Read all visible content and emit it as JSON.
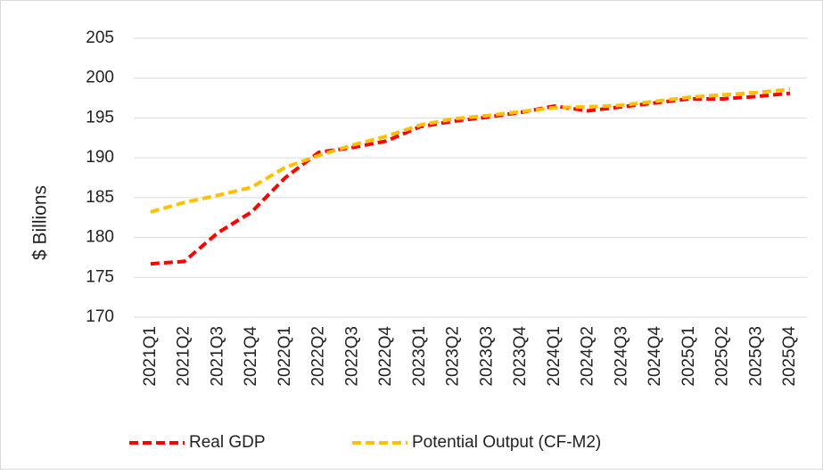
{
  "chart_data": {
    "type": "line",
    "y_label": "$ Billions",
    "categories": [
      "2021Q1",
      "2021Q2",
      "2021Q3",
      "2021Q4",
      "2022Q1",
      "2022Q2",
      "2022Q3",
      "2022Q4",
      "2023Q1",
      "2023Q2",
      "2023Q3",
      "2023Q4",
      "2024Q1",
      "2024Q2",
      "2024Q3",
      "2024Q4",
      "2025Q1",
      "2025Q2",
      "2025Q3",
      "2025Q4"
    ],
    "series": [
      {
        "name": "Real GDP",
        "color": "#ff0000",
        "values": [
          176.7,
          177.0,
          180.6,
          183.2,
          187.5,
          190.7,
          191.3,
          192.1,
          193.9,
          194.6,
          195.1,
          195.7,
          196.5,
          195.9,
          196.4,
          196.9,
          197.4,
          197.4,
          197.7,
          198.1
        ]
      },
      {
        "name": "Potential Output (CF-M2)",
        "color": "#ffc000",
        "values": [
          183.2,
          184.4,
          185.3,
          186.3,
          188.8,
          190.3,
          191.6,
          192.7,
          194.1,
          194.9,
          195.3,
          195.8,
          196.3,
          196.4,
          196.6,
          197.1,
          197.6,
          197.9,
          198.2,
          198.6
        ]
      }
    ],
    "ylim": [
      170,
      205
    ],
    "yticks": [
      170,
      175,
      180,
      185,
      190,
      195,
      200,
      205
    ],
    "grid": true
  }
}
